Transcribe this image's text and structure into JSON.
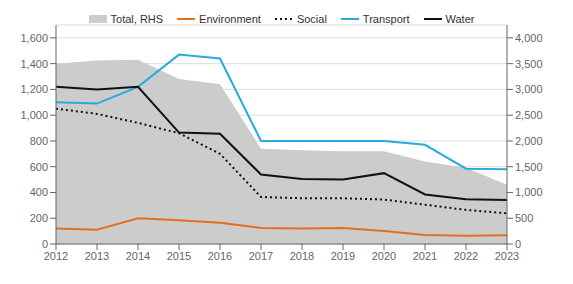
{
  "chart_data": {
    "type": "line",
    "x": [
      2012,
      2013,
      2014,
      2015,
      2016,
      2017,
      2018,
      2019,
      2020,
      2021,
      2022,
      2023
    ],
    "xlim": [
      2012,
      2023
    ],
    "xticks": [
      2012,
      2013,
      2014,
      2015,
      2016,
      2017,
      2018,
      2019,
      2020,
      2021,
      2022,
      2023
    ],
    "ylim": [
      0,
      1700
    ],
    "yticks": [
      0,
      200,
      400,
      600,
      800,
      {
        "value": 1000,
        "label": "1,000"
      },
      {
        "value": 1200,
        "label": "1,200"
      },
      {
        "value": 1400,
        "label": "1,400"
      },
      {
        "value": 1600,
        "label": "1,600"
      }
    ],
    "y2lim": [
      0,
      4250
    ],
    "y2ticks": [
      0,
      500,
      {
        "value": 1000,
        "label": "1,000"
      },
      {
        "value": 1500,
        "label": "1,500"
      },
      {
        "value": 2000,
        "label": "2,000"
      },
      {
        "value": 2500,
        "label": "2,500"
      },
      {
        "value": 3000,
        "label": "3,000"
      },
      {
        "value": 3500,
        "label": "3,500"
      },
      {
        "value": 4000,
        "label": "4,000"
      }
    ],
    "grid": true,
    "legend": "top",
    "series": [
      {
        "name": "Total, RHS",
        "type": "area",
        "color": "#cccccc",
        "axis": "y2",
        "values": [
          3500,
          3560,
          3575,
          3200,
          3100,
          1850,
          1820,
          1800,
          1800,
          1600,
          1480,
          1150
        ]
      },
      {
        "name": "Environment",
        "type": "line",
        "color": "#e07020",
        "line_style": "solid",
        "values": [
          120,
          110,
          200,
          185,
          165,
          125,
          120,
          125,
          100,
          70,
          65,
          68
        ]
      },
      {
        "name": "Social",
        "type": "line",
        "color": "#111111",
        "line_style": "dotted",
        "values": [
          1050,
          1010,
          940,
          860,
          700,
          365,
          355,
          355,
          345,
          305,
          265,
          238
        ]
      },
      {
        "name": "Transport",
        "type": "line",
        "color": "#29aae1",
        "line_style": "solid",
        "values": [
          1100,
          1090,
          1220,
          1470,
          1440,
          800,
          800,
          800,
          800,
          770,
          585,
          580
        ]
      },
      {
        "name": "Water",
        "type": "line",
        "color": "#111111",
        "line_style": "solid",
        "values": [
          1220,
          1200,
          1220,
          865,
          855,
          540,
          505,
          500,
          550,
          385,
          348,
          342
        ]
      }
    ]
  }
}
